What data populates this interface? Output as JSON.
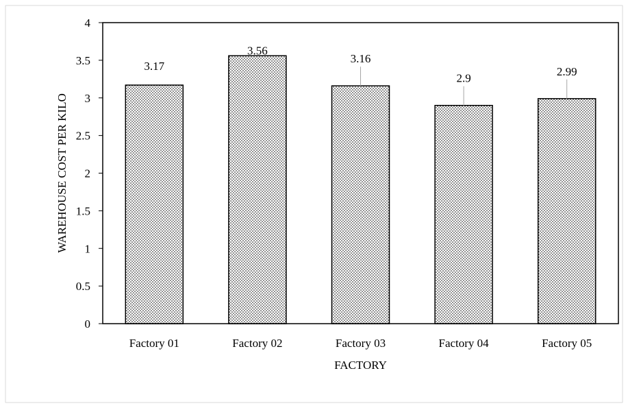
{
  "chart_data": {
    "type": "bar",
    "title": "",
    "xlabel": "FACTORY",
    "ylabel": "WAREHOUSE COST PER KILO",
    "categories": [
      "Factory 01",
      "Factory 02",
      "Factory 03",
      "Factory 04",
      "Factory 05"
    ],
    "values": [
      3.17,
      3.56,
      3.16,
      2.9,
      2.99
    ],
    "data_labels": [
      "3.17",
      "3.56",
      "3.16",
      "2.9",
      "2.99"
    ],
    "ylim": [
      0,
      4
    ],
    "yticks": [
      0,
      0.5,
      1,
      1.5,
      2,
      2.5,
      3,
      3.5,
      4
    ],
    "ytick_labels": [
      "0",
      "0.5",
      "1",
      "1.5",
      "2",
      "2.5",
      "3",
      "3.5",
      "4"
    ],
    "grid": false,
    "legend": "none",
    "bar_fill": "dotted pattern",
    "colors": {
      "bar_outline": "#000000",
      "dots": "#000000",
      "background": "#ffffff"
    }
  }
}
